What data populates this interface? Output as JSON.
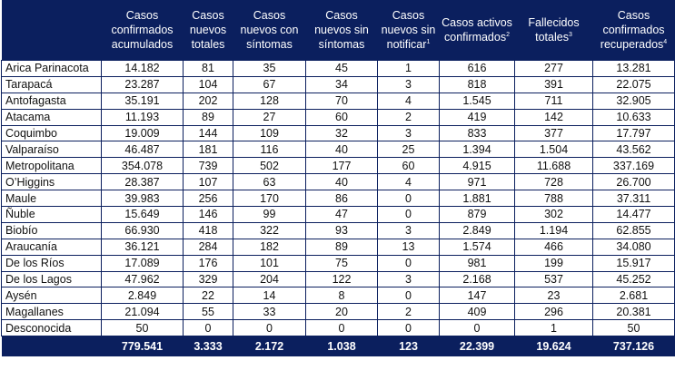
{
  "headers": [
    {
      "label": ""
    },
    {
      "label": "Casos confirmados acumulados",
      "sup": ""
    },
    {
      "label": "Casos nuevos totales",
      "sup": ""
    },
    {
      "label": "Casos nuevos con síntomas",
      "sup": ""
    },
    {
      "label": "Casos nuevos sin síntomas",
      "sup": ""
    },
    {
      "label": "Casos nuevos sin notificar",
      "sup": "1"
    },
    {
      "label": "Casos activos confirmados",
      "sup": "2"
    },
    {
      "label": "Fallecidos totales",
      "sup": "3"
    },
    {
      "label": "Casos confirmados recuperados",
      "sup": "4"
    }
  ],
  "rows": [
    [
      "Arica Parinacota",
      "14.182",
      "81",
      "35",
      "45",
      "1",
      "616",
      "277",
      "13.281"
    ],
    [
      "Tarapacá",
      "23.287",
      "104",
      "67",
      "34",
      "3",
      "818",
      "391",
      "22.075"
    ],
    [
      "Antofagasta",
      "35.191",
      "202",
      "128",
      "70",
      "4",
      "1.545",
      "711",
      "32.905"
    ],
    [
      "Atacama",
      "11.193",
      "89",
      "27",
      "60",
      "2",
      "419",
      "142",
      "10.633"
    ],
    [
      "Coquimbo",
      "19.009",
      "144",
      "109",
      "32",
      "3",
      "833",
      "377",
      "17.797"
    ],
    [
      "Valparaíso",
      "46.487",
      "181",
      "116",
      "40",
      "25",
      "1.394",
      "1.504",
      "43.562"
    ],
    [
      "Metropolitana",
      "354.078",
      "739",
      "502",
      "177",
      "60",
      "4.915",
      "11.688",
      "337.169"
    ],
    [
      "O’Higgins",
      "28.387",
      "107",
      "63",
      "40",
      "4",
      "971",
      "728",
      "26.700"
    ],
    [
      "Maule",
      "39.983",
      "256",
      "170",
      "86",
      "0",
      "1.881",
      "788",
      "37.311"
    ],
    [
      "Ñuble",
      "15.649",
      "146",
      "99",
      "47",
      "0",
      "879",
      "302",
      "14.477"
    ],
    [
      "Biobío",
      "66.930",
      "418",
      "322",
      "93",
      "3",
      "2.849",
      "1.194",
      "62.855"
    ],
    [
      "Araucanía",
      "36.121",
      "284",
      "182",
      "89",
      "13",
      "1.574",
      "466",
      "34.080"
    ],
    [
      "De los Ríos",
      "17.089",
      "176",
      "101",
      "75",
      "0",
      "981",
      "199",
      "15.917"
    ],
    [
      "De los Lagos",
      "47.962",
      "329",
      "204",
      "122",
      "3",
      "2.168",
      "537",
      "45.252"
    ],
    [
      "Aysén",
      "2.849",
      "22",
      "14",
      "8",
      "0",
      "147",
      "23",
      "2.681"
    ],
    [
      "Magallanes",
      "21.094",
      "55",
      "33",
      "20",
      "2",
      "409",
      "296",
      "20.381"
    ],
    [
      "Desconocida",
      "50",
      "0",
      "0",
      "0",
      "0",
      "0",
      "1",
      "50"
    ]
  ],
  "totals": [
    "",
    "779.541",
    "3.333",
    "2.172",
    "1.038",
    "123",
    "22.399",
    "19.624",
    "737.126"
  ]
}
